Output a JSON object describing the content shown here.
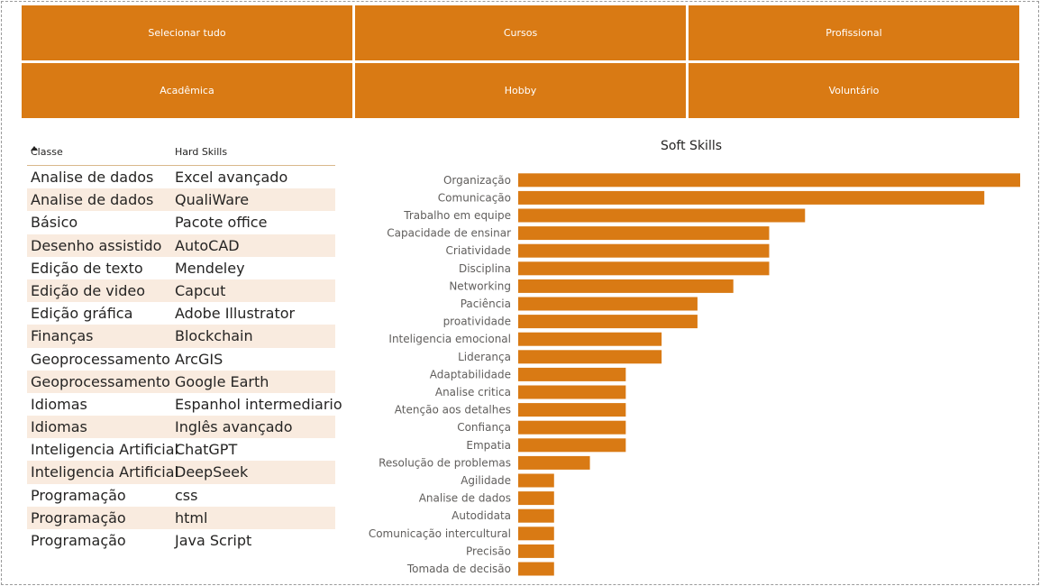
{
  "slicer": {
    "items": [
      {
        "label": "Selecionar tudo"
      },
      {
        "label": "Cursos"
      },
      {
        "label": "Profissional"
      },
      {
        "label": "Acadêmica"
      },
      {
        "label": "Hobby"
      },
      {
        "label": "Voluntário"
      }
    ]
  },
  "table": {
    "headers": {
      "classe": "Classe",
      "hard_skills": "Hard Skills"
    },
    "rows": [
      {
        "classe": "Analise de dados",
        "skill": "Excel avançado"
      },
      {
        "classe": "Analise de dados",
        "skill": "QualiWare"
      },
      {
        "classe": "Básico",
        "skill": "Pacote office"
      },
      {
        "classe": "Desenho assistido",
        "skill": "AutoCAD"
      },
      {
        "classe": "Edição de texto",
        "skill": "Mendeley"
      },
      {
        "classe": "Edição de video",
        "skill": "Capcut"
      },
      {
        "classe": "Edição gráfica",
        "skill": "Adobe Illustrator"
      },
      {
        "classe": "Finanças",
        "skill": "Blockchain"
      },
      {
        "classe": "Geoprocessamento",
        "skill": "ArcGIS"
      },
      {
        "classe": "Geoprocessamento",
        "skill": "Google Earth"
      },
      {
        "classe": "Idiomas",
        "skill": "Espanhol intermediario"
      },
      {
        "classe": "Idiomas",
        "skill": "Inglês avançado"
      },
      {
        "classe": "Inteligencia Artificial",
        "skill": "ChatGPT"
      },
      {
        "classe": "Inteligencia Artificial",
        "skill": "DeepSeek"
      },
      {
        "classe": "Programação",
        "skill": "css"
      },
      {
        "classe": "Programação",
        "skill": "html"
      },
      {
        "classe": "Programação",
        "skill": "Java Script"
      }
    ]
  },
  "colors": {
    "accent": "#d97a14",
    "row_alt": "#f9ebdf"
  },
  "chart_data": {
    "type": "bar",
    "orientation": "horizontal",
    "title": "Soft Skills",
    "categories": [
      "Organização",
      "Comunicação",
      "Trabalho em equipe",
      "Capacidade de ensinar",
      "Criatividade",
      "Disciplina",
      "Networking",
      "Paciência",
      "proatividade",
      "Inteligencia emocional",
      "Liderança",
      "Adaptabilidade",
      "Analise critica",
      "Atenção aos detalhes",
      "Confiança",
      "Empatia",
      "Resolução de problemas",
      "Agilidade",
      "Analise de dados",
      "Autodidata",
      "Comunicação intercultural",
      "Precisão",
      "Tomada de decisão"
    ],
    "values": [
      14,
      13,
      8,
      7,
      7,
      7,
      6,
      5,
      5,
      4,
      4,
      3,
      3,
      3,
      3,
      3,
      2,
      1,
      1,
      1,
      1,
      1,
      1
    ],
    "xlim": [
      0,
      14
    ],
    "grid": false,
    "legend": "none",
    "color": "#d97a14"
  }
}
